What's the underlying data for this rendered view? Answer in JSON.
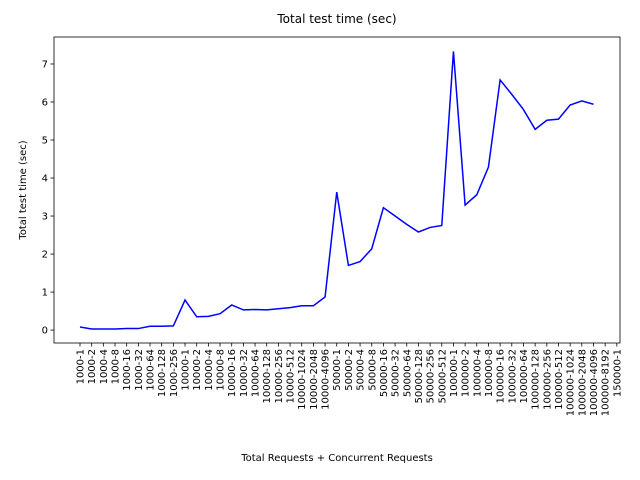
{
  "chart_data": {
    "type": "line",
    "title": "Total test time (sec)",
    "x_label": "Total Requests + Concurrent Requests",
    "y_label": "Total test time (sec)",
    "categories": [
      "1000-1",
      "1000-2",
      "1000-4",
      "1000-8",
      "1000-16",
      "1000-32",
      "1000-64",
      "1000-128",
      "1000-256",
      "10000-1",
      "10000-2",
      "10000-4",
      "10000-8",
      "10000-16",
      "10000-32",
      "10000-64",
      "10000-128",
      "10000-256",
      "10000-512",
      "10000-1024",
      "10000-2048",
      "10000-4096",
      "50000-1",
      "50000-2",
      "50000-4",
      "50000-8",
      "50000-16",
      "50000-32",
      "50000-64",
      "50000-128",
      "50000-256",
      "50000-512",
      "100000-1",
      "100000-2",
      "100000-4",
      "100000-8",
      "100000-16",
      "100000-32",
      "100000-64",
      "100000-128",
      "100000-256",
      "100000-512",
      "100000-1024",
      "100000-2048",
      "100000-4096",
      "100000-8192",
      "150000-1"
    ],
    "values": [
      0.08,
      0.03,
      0.03,
      0.03,
      0.04,
      0.04,
      0.1,
      0.1,
      0.11,
      0.79,
      0.35,
      0.36,
      0.43,
      0.66,
      0.53,
      0.54,
      0.53,
      0.56,
      0.59,
      0.64,
      0.64,
      0.87,
      3.63,
      1.7,
      1.8,
      2.14,
      3.22,
      3.0,
      2.78,
      2.58,
      2.7,
      2.75,
      7.33,
      3.29,
      3.56,
      4.29,
      6.58,
      6.2,
      5.8,
      5.28,
      5.52,
      5.55,
      5.92,
      6.03,
      5.94,
      null,
      null
    ],
    "color": "#0000ff",
    "ylim": [
      -0.34,
      7.71
    ],
    "yticks": [
      0,
      1,
      2,
      3,
      4,
      5,
      6,
      7
    ]
  }
}
